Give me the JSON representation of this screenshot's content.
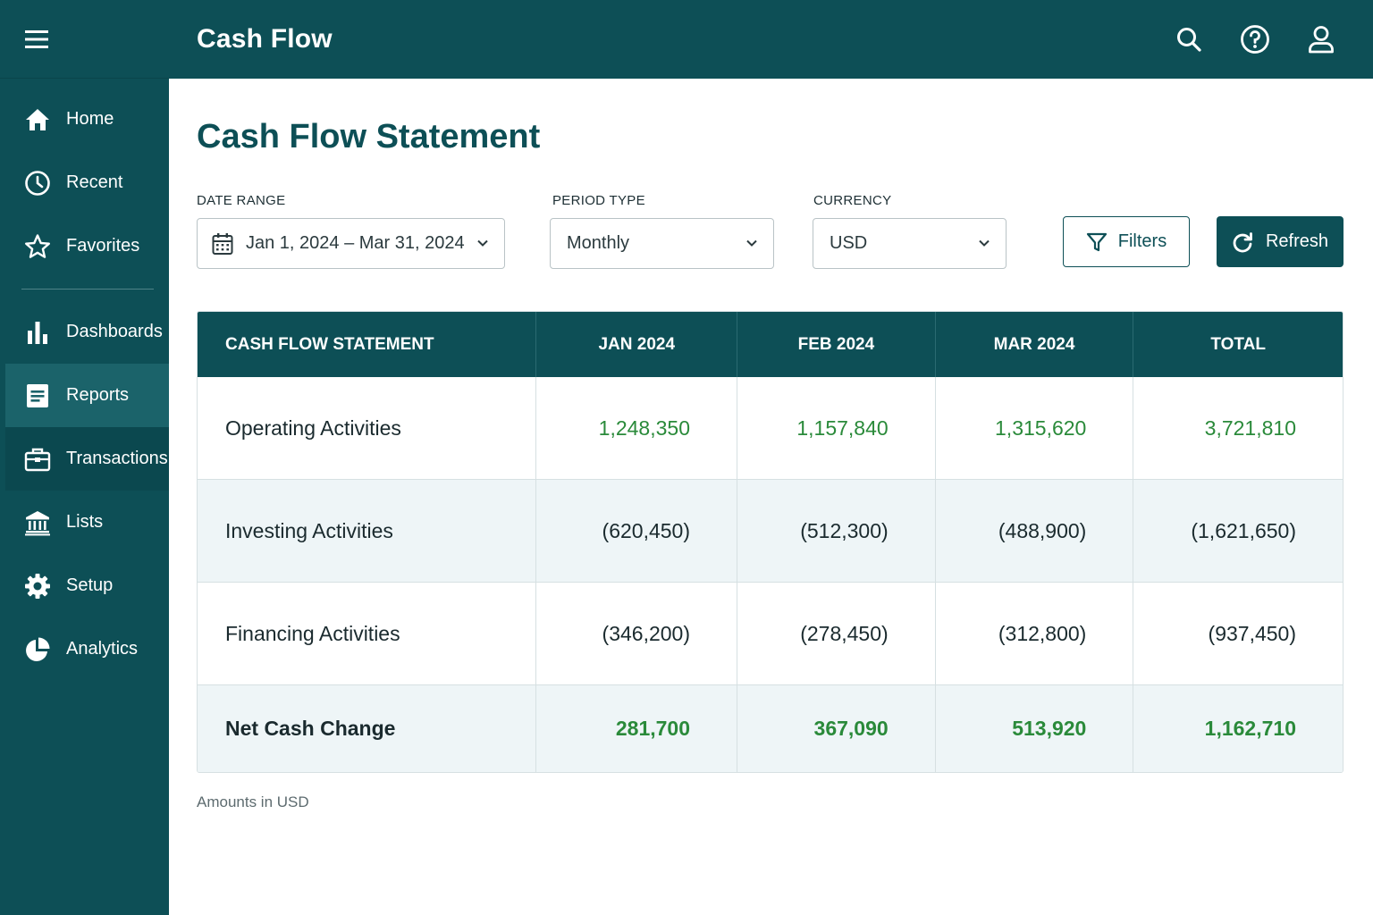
{
  "header": {
    "title": "Cash Flow"
  },
  "sidebar": {
    "items": [
      {
        "label": "Home",
        "icon": "home-icon"
      },
      {
        "label": "Recent",
        "icon": "clock-icon"
      },
      {
        "label": "Favorites",
        "icon": "star-icon"
      },
      {
        "label": "Dashboards",
        "icon": "bar-chart-icon"
      },
      {
        "label": "Reports",
        "icon": "report-icon",
        "active": true
      },
      {
        "label": "Transactions",
        "icon": "briefcase-icon"
      },
      {
        "label": "Lists",
        "icon": "bank-icon"
      },
      {
        "label": "Setup",
        "icon": "gear-icon"
      },
      {
        "label": "Analytics",
        "icon": "pie-chart-icon"
      }
    ]
  },
  "page": {
    "title": "Cash Flow Statement"
  },
  "filters": {
    "date_range": {
      "label": "DATE RANGE",
      "value": "Jan 1, 2024 – Mar 31, 2024"
    },
    "period_type": {
      "label": "PERIOD TYPE",
      "value": "Monthly"
    },
    "currency": {
      "label": "CURRENCY",
      "value": "USD"
    },
    "filters_button": "Filters",
    "refresh_button": "Refresh"
  },
  "table": {
    "headers": [
      "CASH FLOW STATEMENT",
      "JAN 2024",
      "FEB 2024",
      "MAR 2024",
      "TOTAL"
    ],
    "rows": [
      {
        "label": "Operating Activities",
        "values": [
          "1,248,350",
          "1,157,840",
          "1,315,620",
          "3,721,810"
        ]
      },
      {
        "label": "Investing Activities",
        "values": [
          "(620,450)",
          "(512,300)",
          "(488,900)",
          "(1,621,650)"
        ]
      },
      {
        "label": "Financing Activities",
        "values": [
          "(346,200)",
          "(278,450)",
          "(312,800)",
          "(937,450)"
        ]
      },
      {
        "label": "Net Cash Change",
        "values": [
          "281,700",
          "367,090",
          "513,920",
          "1,162,710"
        ]
      }
    ]
  },
  "footnote": "Amounts in USD",
  "colors": {
    "brand": "#0d4f56",
    "positive": "#2a8a3a",
    "row_alt": "#eef5f7"
  }
}
